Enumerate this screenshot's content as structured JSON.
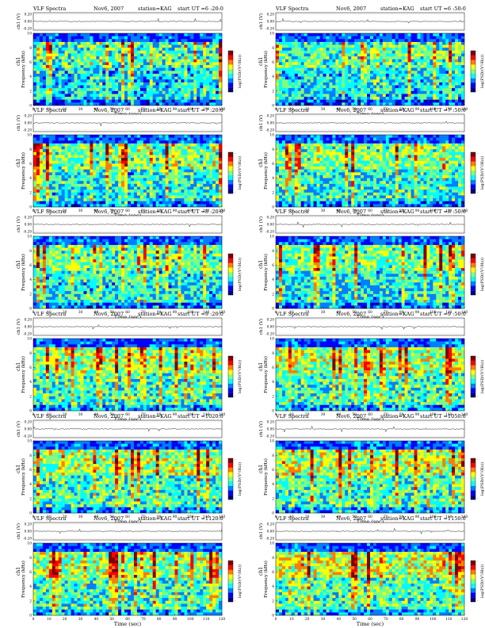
{
  "panel_labels": {
    "title": "VLF Spectra",
    "date": "Nov6, 2007",
    "station": "station=KAG",
    "start_prefix": "start  UT =",
    "ch1_ylabel": "ch1 (V)",
    "spec_ylabel": "Frequency  (kHz)",
    "ch1_overlay": "ch1",
    "xlabel": "Time  (sec)",
    "colorbar_label": "log(PSD/(V²/Hz))",
    "colorbar_min": "-",
    "colorbar_max": "-"
  },
  "colormap": [
    "#00007f",
    "#0000ff",
    "#007fff",
    "#00ffff",
    "#7fff7f",
    "#ffff00",
    "#ff7f00",
    "#ff0000",
    "#7f0000"
  ],
  "chart_data": [
    {
      "type": "heatmap",
      "title": "VLF Spectra",
      "date": "Nov6, 2007",
      "station": "station=KAG",
      "start_ut": "6 :20:0",
      "xlabel": "Time  (sec)",
      "ylabel": "Frequency  (kHz)",
      "xlim": [
        0,
        120
      ],
      "ylim": [
        0,
        10
      ],
      "x_ticks": [
        0,
        10,
        20,
        30,
        40,
        50,
        60,
        70,
        80,
        90,
        100,
        110,
        120
      ],
      "y_ticks": [
        0,
        2,
        4,
        6,
        8,
        10
      ],
      "ch1_ticks": [
        "0.20",
        "0.00",
        "-0.20"
      ],
      "colorbar_label": "log(PSD/(V²/Hz))",
      "intensity": 0.42
    },
    {
      "type": "heatmap",
      "title": "VLF Spectra",
      "date": "Nov6, 2007",
      "station": "station=KAG",
      "start_ut": "6 :50:0",
      "xlabel": "Time  (sec)",
      "ylabel": "Frequency  (kHz)",
      "xlim": [
        0,
        120
      ],
      "ylim": [
        0,
        10
      ],
      "x_ticks": [
        0,
        10,
        20,
        30,
        40,
        50,
        60,
        70,
        80,
        90,
        100,
        110,
        120
      ],
      "y_ticks": [
        0,
        2,
        4,
        6,
        8,
        10
      ],
      "ch1_ticks": [
        "0.20",
        "0.00",
        "-0.20"
      ],
      "colorbar_label": "log(PSD/(V²/Hz))",
      "intensity": 0.45
    },
    {
      "type": "heatmap",
      "title": "VLF Spectra",
      "date": "Nov6, 2007",
      "station": "station=KAG",
      "start_ut": "7 :20:0",
      "xlabel": "Time  (sec)",
      "ylabel": "Frequency  (kHz)",
      "xlim": [
        0,
        120
      ],
      "ylim": [
        0,
        10
      ],
      "x_ticks": [
        0,
        10,
        20,
        30,
        40,
        50,
        60,
        70,
        80,
        90,
        100,
        110,
        120
      ],
      "y_ticks": [
        0,
        2,
        4,
        6,
        8,
        10
      ],
      "ch1_ticks": [
        "0.20",
        "0.00",
        "-0.20"
      ],
      "colorbar_label": "log(PSD/(V²/Hz))",
      "intensity": 0.5
    },
    {
      "type": "heatmap",
      "title": "VLF Spectra",
      "date": "Nov6, 2007",
      "station": "station=KAG",
      "start_ut": "7 :50:0",
      "xlabel": "Time  (sec)",
      "ylabel": "Frequency  (kHz)",
      "xlim": [
        0,
        120
      ],
      "ylim": [
        0,
        10
      ],
      "x_ticks": [
        0,
        10,
        20,
        30,
        40,
        50,
        60,
        70,
        80,
        90,
        100,
        110,
        120
      ],
      "y_ticks": [
        0,
        2,
        4,
        6,
        8,
        10
      ],
      "ch1_ticks": [
        "0.20",
        "0.00",
        "-0.20"
      ],
      "colorbar_label": "log(PSD/(V²/Hz))",
      "intensity": 0.52
    },
    {
      "type": "heatmap",
      "title": "VLF Spectra",
      "date": "Nov6, 2007",
      "station": "station=KAG",
      "start_ut": "8 :20:0",
      "xlabel": "Time  (sec)",
      "ylabel": "Frequency  (kHz)",
      "xlim": [
        0,
        120
      ],
      "ylim": [
        0,
        10
      ],
      "x_ticks": [
        0,
        10,
        20,
        30,
        40,
        50,
        60,
        70,
        80,
        90,
        100,
        110,
        120
      ],
      "y_ticks": [
        0,
        2,
        4,
        6,
        8,
        10
      ],
      "ch1_ticks": [
        "0.20",
        "0.00",
        "-0.20"
      ],
      "colorbar_label": "log(PSD/(V²/Hz))",
      "intensity": 0.48
    },
    {
      "type": "heatmap",
      "title": "VLF Spectra",
      "date": "Nov6, 2007",
      "station": "station=KAG",
      "start_ut": "8 :50:0",
      "xlabel": "Time  (sec)",
      "ylabel": "Frequency  (kHz)",
      "xlim": [
        0,
        120
      ],
      "ylim": [
        0,
        10
      ],
      "x_ticks": [
        0,
        10,
        20,
        30,
        40,
        50,
        60,
        70,
        80,
        90,
        100,
        110,
        120
      ],
      "y_ticks": [
        0,
        2,
        4,
        6,
        8,
        10
      ],
      "ch1_ticks": [
        "0.20",
        "0.00",
        "-0.20"
      ],
      "colorbar_label": "log(PSD/(V²/Hz))",
      "intensity": 0.5
    },
    {
      "type": "heatmap",
      "title": "VLF Spectra",
      "date": "Nov6, 2007",
      "station": "station=KAG",
      "start_ut": "9 :20:0",
      "xlabel": "Time  (sec)",
      "ylabel": "Frequency  (kHz)",
      "xlim": [
        0,
        120
      ],
      "ylim": [
        0,
        10
      ],
      "x_ticks": [
        0,
        10,
        20,
        30,
        40,
        50,
        60,
        70,
        80,
        90,
        100,
        110,
        120
      ],
      "y_ticks": [
        0,
        2,
        4,
        6,
        8,
        10
      ],
      "ch1_ticks": [
        "0.20",
        "0.00",
        "-0.20"
      ],
      "colorbar_label": "log(PSD/(V²/Hz))",
      "intensity": 0.55
    },
    {
      "type": "heatmap",
      "title": "VLF Spectra",
      "date": "Nov6, 2007",
      "station": "station=KAG",
      "start_ut": "9 :50:0",
      "xlabel": "Time  (sec)",
      "ylabel": "Frequency  (kHz)",
      "xlim": [
        0,
        120
      ],
      "ylim": [
        0,
        10
      ],
      "x_ticks": [
        0,
        10,
        20,
        30,
        40,
        50,
        60,
        70,
        80,
        90,
        100,
        110,
        120
      ],
      "y_ticks": [
        0,
        2,
        4,
        6,
        8,
        10
      ],
      "ch1_ticks": [
        "0.20",
        "0.00",
        "-0.20"
      ],
      "colorbar_label": "log(PSD/(V²/Hz))",
      "intensity": 0.6
    },
    {
      "type": "heatmap",
      "title": "VLF Spectra",
      "date": "Nov6, 2007",
      "station": "station=KAG",
      "start_ut": "1020:0",
      "xlabel": "Time  (sec)",
      "ylabel": "Frequency  (kHz)",
      "xlim": [
        0,
        120
      ],
      "ylim": [
        0,
        10
      ],
      "x_ticks": [
        0,
        10,
        20,
        30,
        40,
        50,
        60,
        70,
        80,
        90,
        100,
        110,
        120
      ],
      "y_ticks": [
        0,
        2,
        4,
        6,
        8,
        10
      ],
      "ch1_ticks": [
        "0.20",
        "0.00",
        "-0.20"
      ],
      "colorbar_label": "log(PSD/(V²/Hz))",
      "intensity": 0.6
    },
    {
      "type": "heatmap",
      "title": "VLF Spectra",
      "date": "Nov6, 2007",
      "station": "station=KAG",
      "start_ut": "1050:0",
      "xlabel": "Time  (sec)",
      "ylabel": "Frequency  (kHz)",
      "xlim": [
        0,
        120
      ],
      "ylim": [
        0,
        10
      ],
      "x_ticks": [
        0,
        10,
        20,
        30,
        40,
        50,
        60,
        70,
        80,
        90,
        100,
        110,
        120
      ],
      "y_ticks": [
        0,
        2,
        4,
        6,
        8,
        10
      ],
      "ch1_ticks": [
        "0.20",
        "0.00",
        "-0.20"
      ],
      "colorbar_label": "log(PSD/(V²/Hz))",
      "intensity": 0.62
    },
    {
      "type": "heatmap",
      "title": "VLF Spectra",
      "date": "Nov6, 2007",
      "station": "station=KAG",
      "start_ut": "1120:0",
      "xlabel": "Time  (sec)",
      "ylabel": "Frequency  (kHz)",
      "xlim": [
        0,
        120
      ],
      "ylim": [
        0,
        10
      ],
      "x_ticks": [
        0,
        10,
        20,
        30,
        40,
        50,
        60,
        70,
        80,
        90,
        100,
        110,
        120
      ],
      "y_ticks": [
        0,
        2,
        4,
        6,
        8,
        10
      ],
      "ch1_ticks": [
        "0.20",
        "0.00",
        "-0.20"
      ],
      "colorbar_label": "log(PSD/(V²/Hz))",
      "intensity": 0.58
    },
    {
      "type": "heatmap",
      "title": "VLF Spectra",
      "date": "Nov6, 2007",
      "station": "station=KAG",
      "start_ut": "1150:0",
      "xlabel": "Time  (sec)",
      "ylabel": "Frequency  (kHz)",
      "xlim": [
        0,
        120
      ],
      "ylim": [
        0,
        10
      ],
      "x_ticks": [
        0,
        10,
        20,
        30,
        40,
        50,
        60,
        70,
        80,
        90,
        100,
        110,
        120
      ],
      "y_ticks": [
        0,
        2,
        4,
        6,
        8,
        10
      ],
      "ch1_ticks": [
        "0.20",
        "0.00",
        "-0.20"
      ],
      "colorbar_label": "log(PSD/(V²/Hz))",
      "intensity": 0.65
    }
  ]
}
